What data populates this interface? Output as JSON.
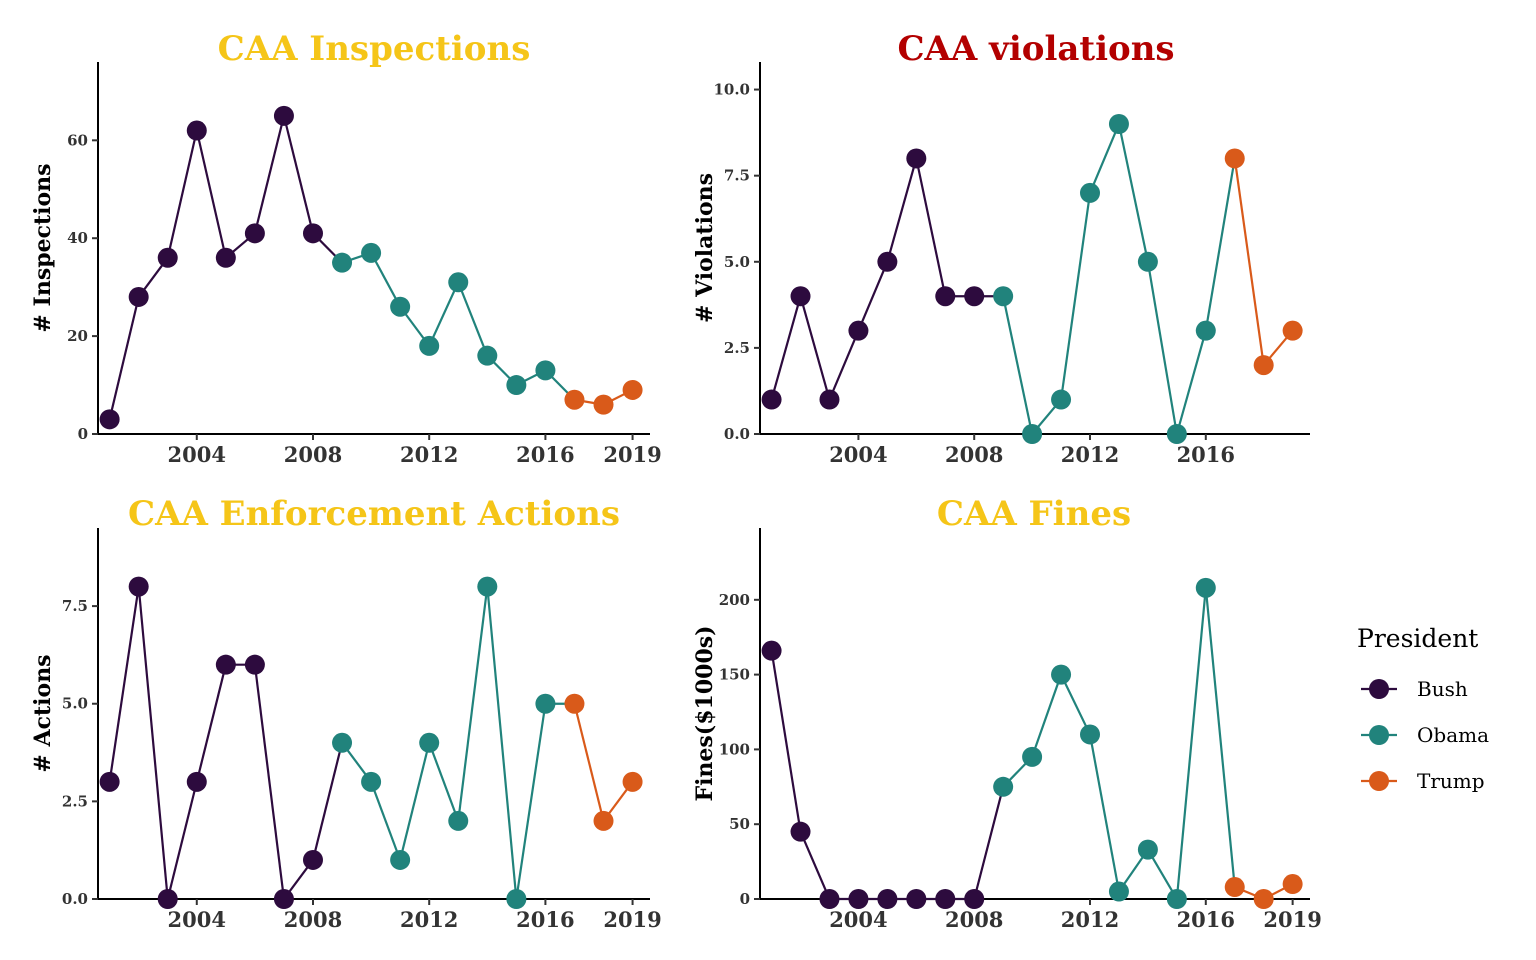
{
  "colors": {
    "Bush": "#2d0b3e",
    "Obama": "#21837c",
    "Trump": "#d95a1a"
  },
  "legend": {
    "title": "President",
    "items": [
      "Bush",
      "Obama",
      "Trump"
    ]
  },
  "chart_data": [
    {
      "type": "line",
      "title": "CAA Inspections",
      "title_color": "#f5c518",
      "ylabel": "# Inspections",
      "ylim": [
        0,
        76
      ],
      "yticks": [
        0,
        20,
        40,
        60
      ],
      "ytick_labels": [
        "0",
        "20",
        "40",
        "60"
      ],
      "xlim": [
        2000.6,
        2019.6
      ],
      "xticks": [
        2004,
        2008,
        2012,
        2016,
        2019
      ],
      "points": [
        {
          "x": 2001,
          "y": 3,
          "p": "Bush"
        },
        {
          "x": 2002,
          "y": 28,
          "p": "Bush"
        },
        {
          "x": 2003,
          "y": 36,
          "p": "Bush"
        },
        {
          "x": 2004,
          "y": 62,
          "p": "Bush"
        },
        {
          "x": 2005,
          "y": 36,
          "p": "Bush"
        },
        {
          "x": 2006,
          "y": 41,
          "p": "Bush"
        },
        {
          "x": 2007,
          "y": 65,
          "p": "Bush"
        },
        {
          "x": 2008,
          "y": 41,
          "p": "Bush"
        },
        {
          "x": 2009,
          "y": 35,
          "p": "Obama"
        },
        {
          "x": 2010,
          "y": 37,
          "p": "Obama"
        },
        {
          "x": 2011,
          "y": 26,
          "p": "Obama"
        },
        {
          "x": 2012,
          "y": 18,
          "p": "Obama"
        },
        {
          "x": 2013,
          "y": 31,
          "p": "Obama"
        },
        {
          "x": 2014,
          "y": 16,
          "p": "Obama"
        },
        {
          "x": 2015,
          "y": 10,
          "p": "Obama"
        },
        {
          "x": 2016,
          "y": 13,
          "p": "Obama"
        },
        {
          "x": 2017,
          "y": 7,
          "p": "Trump"
        },
        {
          "x": 2018,
          "y": 6,
          "p": "Trump"
        },
        {
          "x": 2019,
          "y": 9,
          "p": "Trump"
        }
      ]
    },
    {
      "type": "line",
      "title": "CAA violations",
      "title_color": "#b30000",
      "ylabel": "# Violations",
      "ylim": [
        0,
        10.8
      ],
      "yticks": [
        0,
        2.5,
        5,
        7.5,
        10
      ],
      "ytick_labels": [
        "0.0",
        "2.5",
        "5.0",
        "7.5",
        "10.0"
      ],
      "xlim": [
        2000.6,
        2019.6
      ],
      "xticks": [
        2004,
        2008,
        2012,
        2016
      ],
      "points": [
        {
          "x": 2001,
          "y": 1,
          "p": "Bush"
        },
        {
          "x": 2002,
          "y": 4,
          "p": "Bush"
        },
        {
          "x": 2003,
          "y": 1,
          "p": "Bush"
        },
        {
          "x": 2004,
          "y": 3,
          "p": "Bush"
        },
        {
          "x": 2005,
          "y": 5,
          "p": "Bush"
        },
        {
          "x": 2006,
          "y": 8,
          "p": "Bush"
        },
        {
          "x": 2007,
          "y": 4,
          "p": "Bush"
        },
        {
          "x": 2008,
          "y": 4,
          "p": "Bush"
        },
        {
          "x": 2009,
          "y": 4,
          "p": "Obama"
        },
        {
          "x": 2010,
          "y": 0,
          "p": "Obama"
        },
        {
          "x": 2011,
          "y": 1,
          "p": "Obama"
        },
        {
          "x": 2012,
          "y": 7,
          "p": "Obama"
        },
        {
          "x": 2013,
          "y": 9,
          "p": "Obama"
        },
        {
          "x": 2014,
          "y": 5,
          "p": "Obama"
        },
        {
          "x": 2015,
          "y": 0,
          "p": "Obama"
        },
        {
          "x": 2016,
          "y": 3,
          "p": "Obama"
        },
        {
          "x": 2017,
          "y": 8,
          "p": "Trump"
        },
        {
          "x": 2018,
          "y": 2,
          "p": "Trump"
        },
        {
          "x": 2019,
          "y": 3,
          "p": "Trump"
        }
      ]
    },
    {
      "type": "line",
      "title": "CAA Enforcement Actions",
      "title_color": "#f5c518",
      "ylabel": "# Actions",
      "ylim": [
        0,
        9.5
      ],
      "yticks": [
        0,
        2.5,
        5,
        7.5
      ],
      "ytick_labels": [
        "0.0",
        "2.5",
        "5.0",
        "7.5"
      ],
      "xlim": [
        2000.6,
        2019.6
      ],
      "xticks": [
        2004,
        2008,
        2012,
        2016,
        2019
      ],
      "points": [
        {
          "x": 2001,
          "y": 3,
          "p": "Bush"
        },
        {
          "x": 2002,
          "y": 8,
          "p": "Bush"
        },
        {
          "x": 2003,
          "y": 0,
          "p": "Bush"
        },
        {
          "x": 2004,
          "y": 3,
          "p": "Bush"
        },
        {
          "x": 2005,
          "y": 6,
          "p": "Bush"
        },
        {
          "x": 2006,
          "y": 6,
          "p": "Bush"
        },
        {
          "x": 2007,
          "y": 0,
          "p": "Bush"
        },
        {
          "x": 2008,
          "y": 1,
          "p": "Bush"
        },
        {
          "x": 2009,
          "y": 4,
          "p": "Obama"
        },
        {
          "x": 2010,
          "y": 3,
          "p": "Obama"
        },
        {
          "x": 2011,
          "y": 1,
          "p": "Obama"
        },
        {
          "x": 2012,
          "y": 4,
          "p": "Obama"
        },
        {
          "x": 2013,
          "y": 2,
          "p": "Obama"
        },
        {
          "x": 2014,
          "y": 8,
          "p": "Obama"
        },
        {
          "x": 2015,
          "y": 0,
          "p": "Obama"
        },
        {
          "x": 2016,
          "y": 5,
          "p": "Obama"
        },
        {
          "x": 2017,
          "y": 5,
          "p": "Trump"
        },
        {
          "x": 2018,
          "y": 2,
          "p": "Trump"
        },
        {
          "x": 2019,
          "y": 3,
          "p": "Trump"
        }
      ]
    },
    {
      "type": "line",
      "title": "CAA Fines",
      "title_color": "#f5c518",
      "ylabel": "Fines($1000s)",
      "ylim": [
        0,
        248
      ],
      "yticks": [
        0,
        50,
        100,
        150,
        200
      ],
      "ytick_labels": [
        "0",
        "50",
        "100",
        "150",
        "200"
      ],
      "xlim": [
        2000.6,
        2019.6
      ],
      "xticks": [
        2004,
        2008,
        2012,
        2016,
        2019
      ],
      "points": [
        {
          "x": 2001,
          "y": 166,
          "p": "Bush"
        },
        {
          "x": 2002,
          "y": 45,
          "p": "Bush"
        },
        {
          "x": 2003,
          "y": 0,
          "p": "Bush"
        },
        {
          "x": 2004,
          "y": 0,
          "p": "Bush"
        },
        {
          "x": 2005,
          "y": 0,
          "p": "Bush"
        },
        {
          "x": 2006,
          "y": 0,
          "p": "Bush"
        },
        {
          "x": 2007,
          "y": 0,
          "p": "Bush"
        },
        {
          "x": 2008,
          "y": 0,
          "p": "Bush"
        },
        {
          "x": 2009,
          "y": 75,
          "p": "Obama"
        },
        {
          "x": 2010,
          "y": 95,
          "p": "Obama"
        },
        {
          "x": 2011,
          "y": 150,
          "p": "Obama"
        },
        {
          "x": 2012,
          "y": 110,
          "p": "Obama"
        },
        {
          "x": 2013,
          "y": 5,
          "p": "Obama"
        },
        {
          "x": 2014,
          "y": 33,
          "p": "Obama"
        },
        {
          "x": 2015,
          "y": 0,
          "p": "Obama"
        },
        {
          "x": 2016,
          "y": 208,
          "p": "Obama"
        },
        {
          "x": 2017,
          "y": 8,
          "p": "Trump"
        },
        {
          "x": 2018,
          "y": 0,
          "p": "Trump"
        },
        {
          "x": 2019,
          "y": 10,
          "p": "Trump"
        }
      ]
    }
  ]
}
